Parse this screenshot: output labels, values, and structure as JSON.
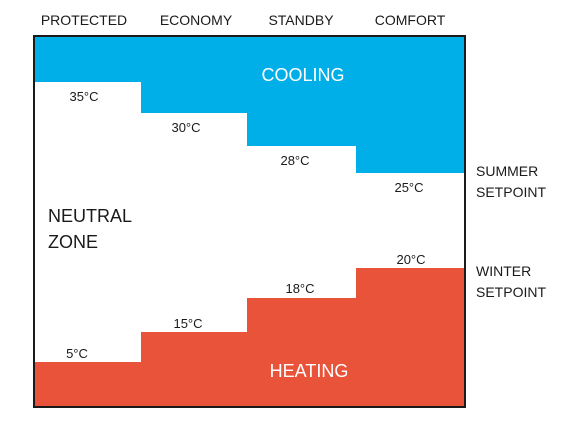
{
  "modes": [
    "PROTECTED",
    "ECONOMY",
    "STANDBY",
    "COMFORT"
  ],
  "cooling": {
    "label": "COOLING",
    "color": "#00aee8",
    "setpoints": [
      "35°C",
      "30°C",
      "28°C",
      "25°C"
    ]
  },
  "heating": {
    "label": "HEATING",
    "color": "#e8533a",
    "setpoints": [
      "5°C",
      "15°C",
      "18°C",
      "20°C"
    ]
  },
  "neutral_zone": [
    "NEUTRAL",
    "ZONE"
  ],
  "summer_setpoint": [
    "SUMMER",
    "SETPOINT"
  ],
  "winter_setpoint": [
    "WINTER",
    "SETPOINT"
  ]
}
